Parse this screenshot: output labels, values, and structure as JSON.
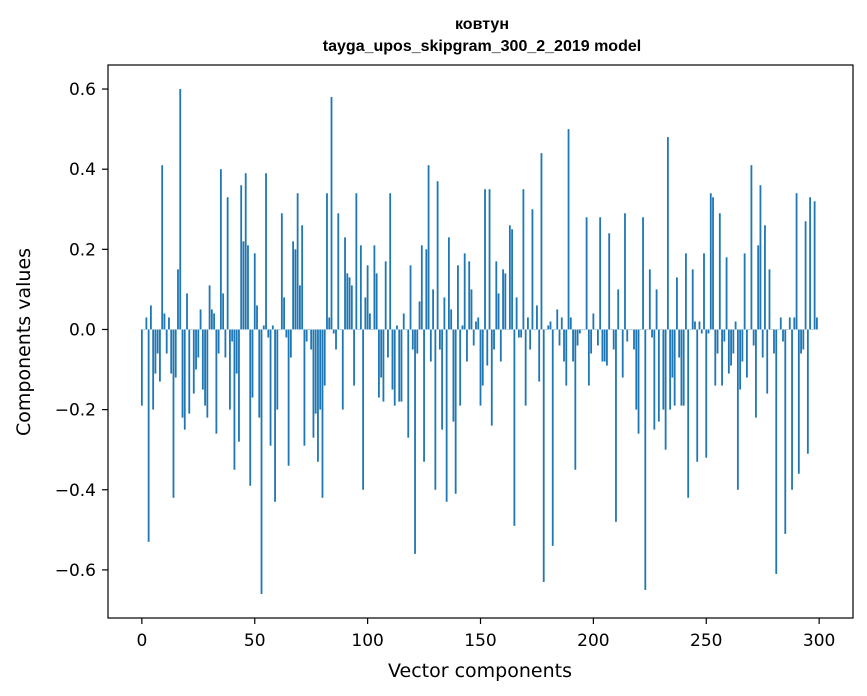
{
  "chart_data": {
    "type": "bar",
    "title": "ковтун",
    "subtitle": "tayga_upos_skipgram_300_2_2019 model",
    "xlabel": "Vector components",
    "ylabel": "Components values",
    "xlim": [
      -15,
      315
    ],
    "ylim": [
      -0.72,
      0.66
    ],
    "xticks": [
      0,
      50,
      100,
      150,
      200,
      250,
      300
    ],
    "xtick_labels": [
      "0",
      "50",
      "100",
      "150",
      "200",
      "250",
      "300"
    ],
    "yticks": [
      -0.6,
      -0.4,
      -0.2,
      0.0,
      0.2,
      0.4,
      0.6
    ],
    "ytick_labels": [
      "−0.6",
      "−0.4",
      "−0.2",
      "0.0",
      "0.2",
      "0.4",
      "0.6"
    ],
    "grid": false,
    "bar_color": "#1f77b4",
    "x": [
      0,
      1,
      2,
      3,
      4,
      5,
      6,
      7,
      8,
      9,
      10,
      11,
      12,
      13,
      14,
      15,
      16,
      17,
      18,
      19,
      20,
      21,
      22,
      23,
      24,
      25,
      26,
      27,
      28,
      29,
      30,
      31,
      32,
      33,
      34,
      35,
      36,
      37,
      38,
      39,
      40,
      41,
      42,
      43,
      44,
      45,
      46,
      47,
      48,
      49,
      50,
      51,
      52,
      53,
      54,
      55,
      56,
      57,
      58,
      59,
      60,
      61,
      62,
      63,
      64,
      65,
      66,
      67,
      68,
      69,
      70,
      71,
      72,
      73,
      74,
      75,
      76,
      77,
      78,
      79,
      80,
      81,
      82,
      83,
      84,
      85,
      86,
      87,
      88,
      89,
      90,
      91,
      92,
      93,
      94,
      95,
      96,
      97,
      98,
      99,
      100,
      101,
      102,
      103,
      104,
      105,
      106,
      107,
      108,
      109,
      110,
      111,
      112,
      113,
      114,
      115,
      116,
      117,
      118,
      119,
      120,
      121,
      122,
      123,
      124,
      125,
      126,
      127,
      128,
      129,
      130,
      131,
      132,
      133,
      134,
      135,
      136,
      137,
      138,
      139,
      140,
      141,
      142,
      143,
      144,
      145,
      146,
      147,
      148,
      149,
      150,
      151,
      152,
      153,
      154,
      155,
      156,
      157,
      158,
      159,
      160,
      161,
      162,
      163,
      164,
      165,
      166,
      167,
      168,
      169,
      170,
      171,
      172,
      173,
      174,
      175,
      176,
      177,
      178,
      179,
      180,
      181,
      182,
      183,
      184,
      185,
      186,
      187,
      188,
      189,
      190,
      191,
      192,
      193,
      194,
      195,
      196,
      197,
      198,
      199,
      200,
      201,
      202,
      203,
      204,
      205,
      206,
      207,
      208,
      209,
      210,
      211,
      212,
      213,
      214,
      215,
      216,
      217,
      218,
      219,
      220,
      221,
      222,
      223,
      224,
      225,
      226,
      227,
      228,
      229,
      230,
      231,
      232,
      233,
      234,
      235,
      236,
      237,
      238,
      239,
      240,
      241,
      242,
      243,
      244,
      245,
      246,
      247,
      248,
      249,
      250,
      251,
      252,
      253,
      254,
      255,
      256,
      257,
      258,
      259,
      260,
      261,
      262,
      263,
      264,
      265,
      266,
      267,
      268,
      269,
      270,
      271,
      272,
      273,
      274,
      275,
      276,
      277,
      278,
      279,
      280,
      281,
      282,
      283,
      284,
      285,
      286,
      287,
      288,
      289,
      290,
      291,
      292,
      293,
      294,
      295,
      296,
      297,
      298,
      299
    ],
    "values": [
      -0.19,
      0.0,
      0.03,
      -0.53,
      0.06,
      -0.2,
      -0.11,
      -0.06,
      -0.13,
      0.41,
      0.04,
      -0.06,
      0.03,
      -0.11,
      -0.42,
      -0.12,
      0.15,
      0.6,
      -0.22,
      -0.25,
      0.09,
      -0.21,
      0.0,
      -0.16,
      -0.1,
      -0.07,
      0.05,
      -0.15,
      -0.19,
      -0.22,
      0.11,
      0.05,
      0.04,
      -0.26,
      -0.06,
      0.4,
      0.09,
      -0.07,
      0.33,
      -0.2,
      -0.03,
      -0.35,
      -0.11,
      -0.28,
      0.36,
      0.22,
      0.39,
      0.21,
      -0.39,
      -0.17,
      0.19,
      0.06,
      -0.22,
      -0.66,
      0.01,
      0.39,
      -0.02,
      -0.29,
      0.01,
      -0.43,
      -0.2,
      0.0,
      0.29,
      0.08,
      -0.02,
      -0.34,
      -0.07,
      0.22,
      0.2,
      0.34,
      0.11,
      0.26,
      -0.29,
      -0.03,
      0.0,
      -0.05,
      -0.27,
      -0.21,
      -0.33,
      -0.2,
      -0.42,
      -0.14,
      0.34,
      0.03,
      0.58,
      -0.01,
      -0.05,
      0.29,
      0.0,
      -0.2,
      0.23,
      0.14,
      0.13,
      0.11,
      -0.14,
      0.34,
      0.0,
      0.21,
      -0.4,
      0.08,
      0.16,
      0.04,
      0.0,
      0.21,
      0.14,
      -0.17,
      -0.12,
      -0.18,
      0.17,
      -0.07,
      0.34,
      -0.15,
      -0.19,
      0.01,
      -0.18,
      -0.18,
      0.04,
      0.0,
      -0.27,
      0.16,
      -0.05,
      -0.56,
      -0.06,
      0.07,
      0.21,
      -0.33,
      0.2,
      0.41,
      -0.08,
      0.1,
      -0.4,
      0.37,
      -0.05,
      -0.25,
      0.08,
      -0.43,
      0.23,
      0.05,
      -0.23,
      -0.41,
      0.16,
      -0.19,
      0.01,
      0.19,
      -0.08,
      0.17,
      0.1,
      -0.04,
      0.02,
      0.03,
      -0.19,
      -0.14,
      0.35,
      -0.09,
      0.35,
      -0.24,
      -0.05,
      0.17,
      0.09,
      -0.08,
      0.15,
      0.14,
      0.0,
      0.26,
      0.25,
      -0.49,
      0.08,
      -0.02,
      -0.02,
      0.35,
      -0.19,
      0.03,
      -0.05,
      0.3,
      0.0,
      0.06,
      -0.13,
      0.44,
      -0.63,
      0.0,
      0.01,
      0.02,
      -0.54,
      0.0,
      0.05,
      -0.04,
      0.03,
      -0.08,
      -0.14,
      0.5,
      0.03,
      -0.08,
      -0.35,
      -0.04,
      -0.01,
      0.0,
      0.0,
      0.28,
      -0.14,
      -0.06,
      0.04,
      0.0,
      -0.04,
      0.28,
      -0.08,
      -0.08,
      -0.09,
      0.24,
      0.0,
      -0.05,
      -0.48,
      0.1,
      0.0,
      -0.12,
      0.29,
      -0.03,
      0.0,
      0.0,
      -0.05,
      -0.2,
      -0.26,
      0.0,
      0.28,
      -0.65,
      0.0,
      0.15,
      -0.02,
      -0.25,
      0.1,
      -0.23,
      0.0,
      -0.2,
      -0.3,
      0.48,
      -0.2,
      -0.12,
      -0.19,
      0.13,
      -0.07,
      -0.19,
      -0.19,
      0.19,
      -0.42,
      0.0,
      0.15,
      0.02,
      -0.33,
      0.02,
      -0.01,
      0.19,
      -0.32,
      -0.01,
      0.34,
      0.33,
      -0.14,
      -0.06,
      0.29,
      -0.14,
      -0.03,
      0.18,
      -0.11,
      -0.09,
      -0.06,
      0.02,
      -0.4,
      -0.15,
      -0.08,
      0.19,
      -0.12,
      0.0,
      0.41,
      -0.04,
      -0.22,
      0.21,
      0.36,
      -0.07,
      0.26,
      -0.16,
      0.15,
      0.0,
      -0.06,
      -0.61,
      0.0,
      0.03,
      -0.03,
      -0.51,
      0.0,
      0.03,
      -0.4,
      0.03,
      0.34,
      -0.36,
      -0.06,
      -0.05,
      0.27,
      -0.31,
      0.33,
      0.0,
      0.32,
      0.03
    ]
  }
}
